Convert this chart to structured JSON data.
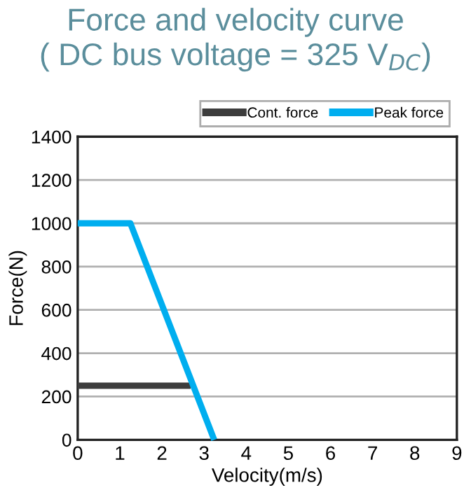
{
  "chart_data": {
    "type": "line",
    "title": "Force and velocity curve",
    "subtitle": "( DC bus voltage = 325 V$_{DC}$)",
    "xlabel": "Velocity(m/s)",
    "ylabel": "Force(N)",
    "series": [
      {
        "name": "Cont. force",
        "color": "#3d3d3d",
        "x": [
          0,
          2.68
        ],
        "values": [
          250,
          250
        ]
      },
      {
        "name": "Peak force",
        "color": "#00aeef",
        "x": [
          0,
          1.25,
          3.24
        ],
        "values": [
          1000,
          1000,
          0
        ]
      }
    ],
    "xlim": [
      0,
      9
    ],
    "xticks": [
      0,
      1,
      2,
      3,
      4,
      5,
      6,
      7,
      8,
      9
    ],
    "ylim": [
      0,
      1400
    ],
    "yticks": [
      0,
      200,
      400,
      600,
      800,
      1000,
      1200,
      1400
    ],
    "grid": "y",
    "legend": "top right",
    "marker": "none",
    "line_style": "solid"
  }
}
